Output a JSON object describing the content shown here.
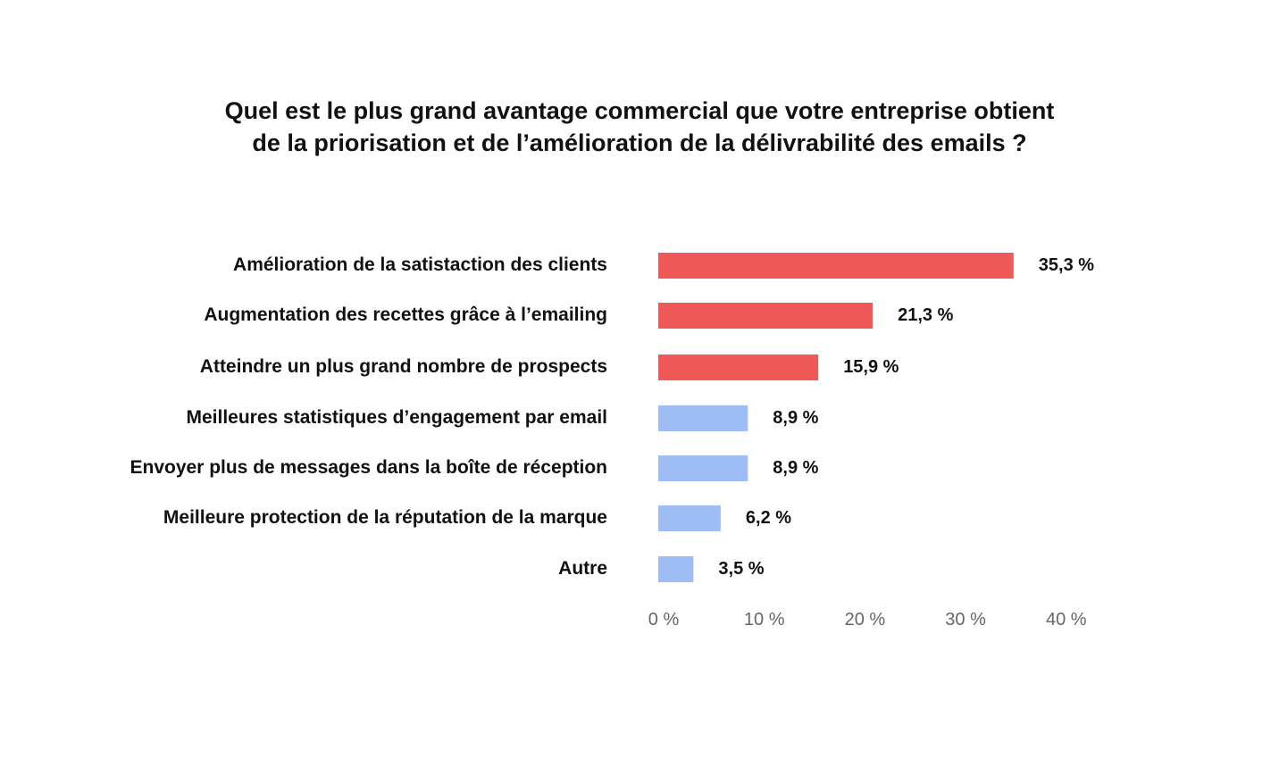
{
  "chart_data": {
    "type": "bar",
    "orientation": "horizontal",
    "title": [
      "Quel est le plus grand avantage commercial que votre entreprise obtient",
      "de la priorisation et de l’amélioration de la délivrabilité des emails ?"
    ],
    "categories": [
      "Amélioration de la satistaction des clients",
      "Augmentation des recettes grâce à l’emailing",
      "Atteindre un plus grand nombre de prospects",
      "Meilleures statistiques d’engagement par email",
      "Envoyer plus de messages dans la boîte de réception",
      "Meilleure protection de la réputation de la marque",
      "Autre"
    ],
    "values": [
      35.3,
      21.3,
      15.9,
      8.9,
      8.9,
      6.2,
      3.5
    ],
    "value_labels": [
      "35,3 %",
      "21,3 %",
      "15,9 %",
      "8,9 %",
      "8,9 %",
      "6,2 %",
      "3,5 %"
    ],
    "bar_colors": [
      "#ef5a59",
      "#ef5a59",
      "#ef5a59",
      "#9fbdf5",
      "#9fbdf5",
      "#9fbdf5",
      "#9fbdf5"
    ],
    "xlim": [
      0,
      40
    ],
    "x_ticks": [
      0,
      10,
      20,
      30,
      40
    ],
    "x_tick_labels": [
      "0 %",
      "10 %",
      "20 %",
      "30 %",
      "40 %"
    ],
    "grid": false,
    "legend": "none",
    "xlabel": "",
    "ylabel": ""
  }
}
